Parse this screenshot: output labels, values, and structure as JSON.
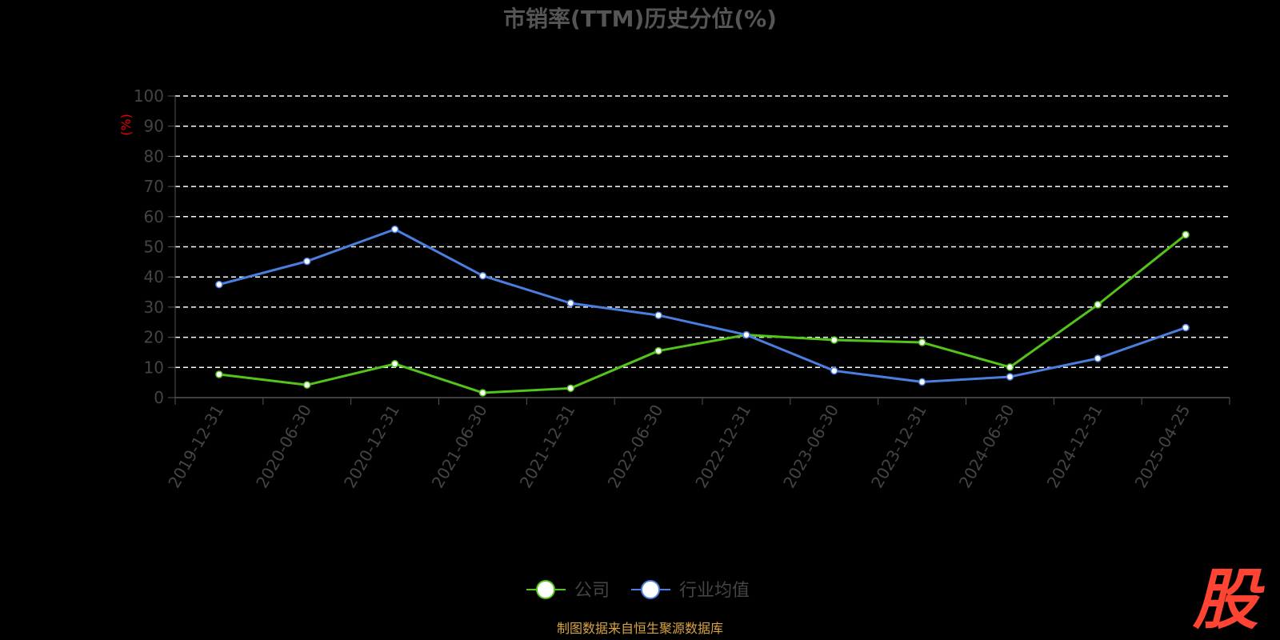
{
  "chart_data": {
    "type": "line",
    "title": "市销率(TTM)历史分位(%)",
    "ylabel": "(%)",
    "ylim": [
      0,
      100
    ],
    "yticks": [
      "0",
      "10",
      "20",
      "30",
      "40",
      "50",
      "60",
      "70",
      "80",
      "90",
      "100"
    ],
    "grid": true,
    "legend_position": "bottom-center",
    "categories": [
      "2019-12-31",
      "2020-06-30",
      "2020-12-31",
      "2021-06-30",
      "2021-12-31",
      "2022-06-30",
      "2022-12-31",
      "2023-06-30",
      "2023-12-31",
      "2024-06-30",
      "2024-12-31",
      "2025-04-25"
    ],
    "series": [
      {
        "name": "公司",
        "color": "#52c41a",
        "values": [
          7.7,
          4.2,
          11.2,
          1.6,
          3.1,
          15.5,
          20.8,
          19.1,
          18.3,
          10.1,
          30.8,
          54.0
        ]
      },
      {
        "name": "行业均值",
        "color": "#4a7fe0",
        "values": [
          37.5,
          45.2,
          55.8,
          40.4,
          31.3,
          27.3,
          20.8,
          8.9,
          5.2,
          6.9,
          13.0,
          23.2
        ]
      }
    ]
  },
  "footer": {
    "source": "制图数据来自恒生聚源数据库",
    "logo_text": "股"
  }
}
